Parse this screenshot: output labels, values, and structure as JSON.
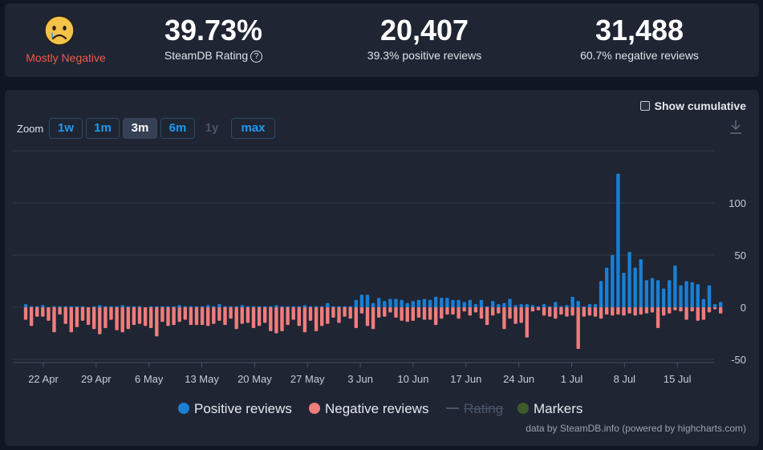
{
  "summary": {
    "mood": "Mostly Negative",
    "rating_value": "39.73%",
    "rating_label": "SteamDB Rating",
    "positive_value": "20,407",
    "positive_label": "39.3% positive reviews",
    "negative_value": "31,488",
    "negative_label": "60.7% negative reviews",
    "colors": {
      "mood": "#f0594b",
      "positive": "#1a7fd4",
      "negative": "#f07c7c"
    },
    "icons": {
      "mood": "sad-face-icon",
      "help": "question-circle-icon"
    }
  },
  "controls": {
    "zoom_label": "Zoom",
    "zoom_buttons": [
      "1w",
      "1m",
      "3m",
      "6m",
      "1y",
      "max"
    ],
    "zoom_active": "3m",
    "zoom_disabled": "1y",
    "cumulative_label": "Show cumulative",
    "download_icon": "download-icon"
  },
  "chart_data": {
    "type": "bar",
    "x_tick_labels": [
      "22 Apr",
      "29 Apr",
      "6 May",
      "13 May",
      "20 May",
      "27 May",
      "3 Jun",
      "10 Jun",
      "17 Jun",
      "24 Jun",
      "1 Jul",
      "8 Jul",
      "15 Jul"
    ],
    "y_ticks": [
      -50,
      0,
      50,
      100
    ],
    "ylim": [
      -60,
      140
    ],
    "grid": true,
    "legend_position": "bottom",
    "series": [
      {
        "name": "Positive reviews",
        "color": "#1a7fd4",
        "values": [
          3,
          1,
          1,
          2,
          0,
          1,
          1,
          1,
          1,
          1,
          1,
          0,
          1,
          2,
          1,
          1,
          1,
          2,
          1,
          1,
          1,
          0,
          1,
          1,
          1,
          1,
          1,
          2,
          1,
          1,
          1,
          1,
          2,
          1,
          3,
          1,
          1,
          1,
          2,
          1,
          1,
          1,
          1,
          1,
          2,
          1,
          1,
          1,
          1,
          2,
          1,
          1,
          1,
          4,
          1,
          1,
          1,
          1,
          7,
          12,
          12,
          4,
          9,
          6,
          8,
          8,
          7,
          4,
          6,
          7,
          8,
          7,
          10,
          9,
          9,
          7,
          7,
          5,
          7,
          3,
          7,
          1,
          6,
          3,
          4,
          8,
          2,
          3,
          3,
          2,
          1,
          3,
          1,
          5,
          1,
          2,
          10,
          6,
          1,
          3,
          3,
          25,
          38,
          50,
          128,
          33,
          53,
          38,
          46,
          26,
          28,
          26,
          18,
          26,
          40,
          21,
          25,
          24,
          22,
          8,
          21,
          3,
          5
        ]
      },
      {
        "name": "Negative reviews",
        "color": "#f07c7c",
        "values": [
          -12,
          -18,
          -9,
          -9,
          -13,
          -24,
          -7,
          -16,
          -24,
          -19,
          -13,
          -17,
          -21,
          -26,
          -20,
          -12,
          -22,
          -24,
          -21,
          -17,
          -16,
          -18,
          -20,
          -28,
          -14,
          -18,
          -17,
          -14,
          -12,
          -17,
          -17,
          -17,
          -18,
          -16,
          -13,
          -17,
          -11,
          -21,
          -16,
          -15,
          -20,
          -18,
          -15,
          -23,
          -25,
          -23,
          -17,
          -12,
          -18,
          -24,
          -13,
          -23,
          -18,
          -16,
          -10,
          -15,
          -9,
          -11,
          -20,
          -6,
          -18,
          -21,
          -10,
          -9,
          -5,
          -10,
          -13,
          -14,
          -13,
          -10,
          -12,
          -12,
          -17,
          -11,
          -7,
          -7,
          -11,
          -4,
          -8,
          -5,
          -11,
          -17,
          -8,
          -6,
          -21,
          -11,
          -16,
          -15,
          -29,
          -4,
          -3,
          -8,
          -9,
          -11,
          -7,
          -9,
          -8,
          -40,
          -9,
          -8,
          -9,
          -11,
          -7,
          -8,
          -7,
          -8,
          -6,
          -8,
          -7,
          -6,
          -5,
          -20,
          -8,
          -6,
          -3,
          -4,
          -12,
          -4,
          -13,
          -12,
          -5,
          -2,
          -6
        ]
      },
      {
        "name": "Rating",
        "color": "#4a5568",
        "values": []
      },
      {
        "name": "Markers",
        "color": "#3d5a2a",
        "values": []
      }
    ]
  },
  "footer": {
    "credit": "data by SteamDB.info (powered by highcharts.com)"
  }
}
